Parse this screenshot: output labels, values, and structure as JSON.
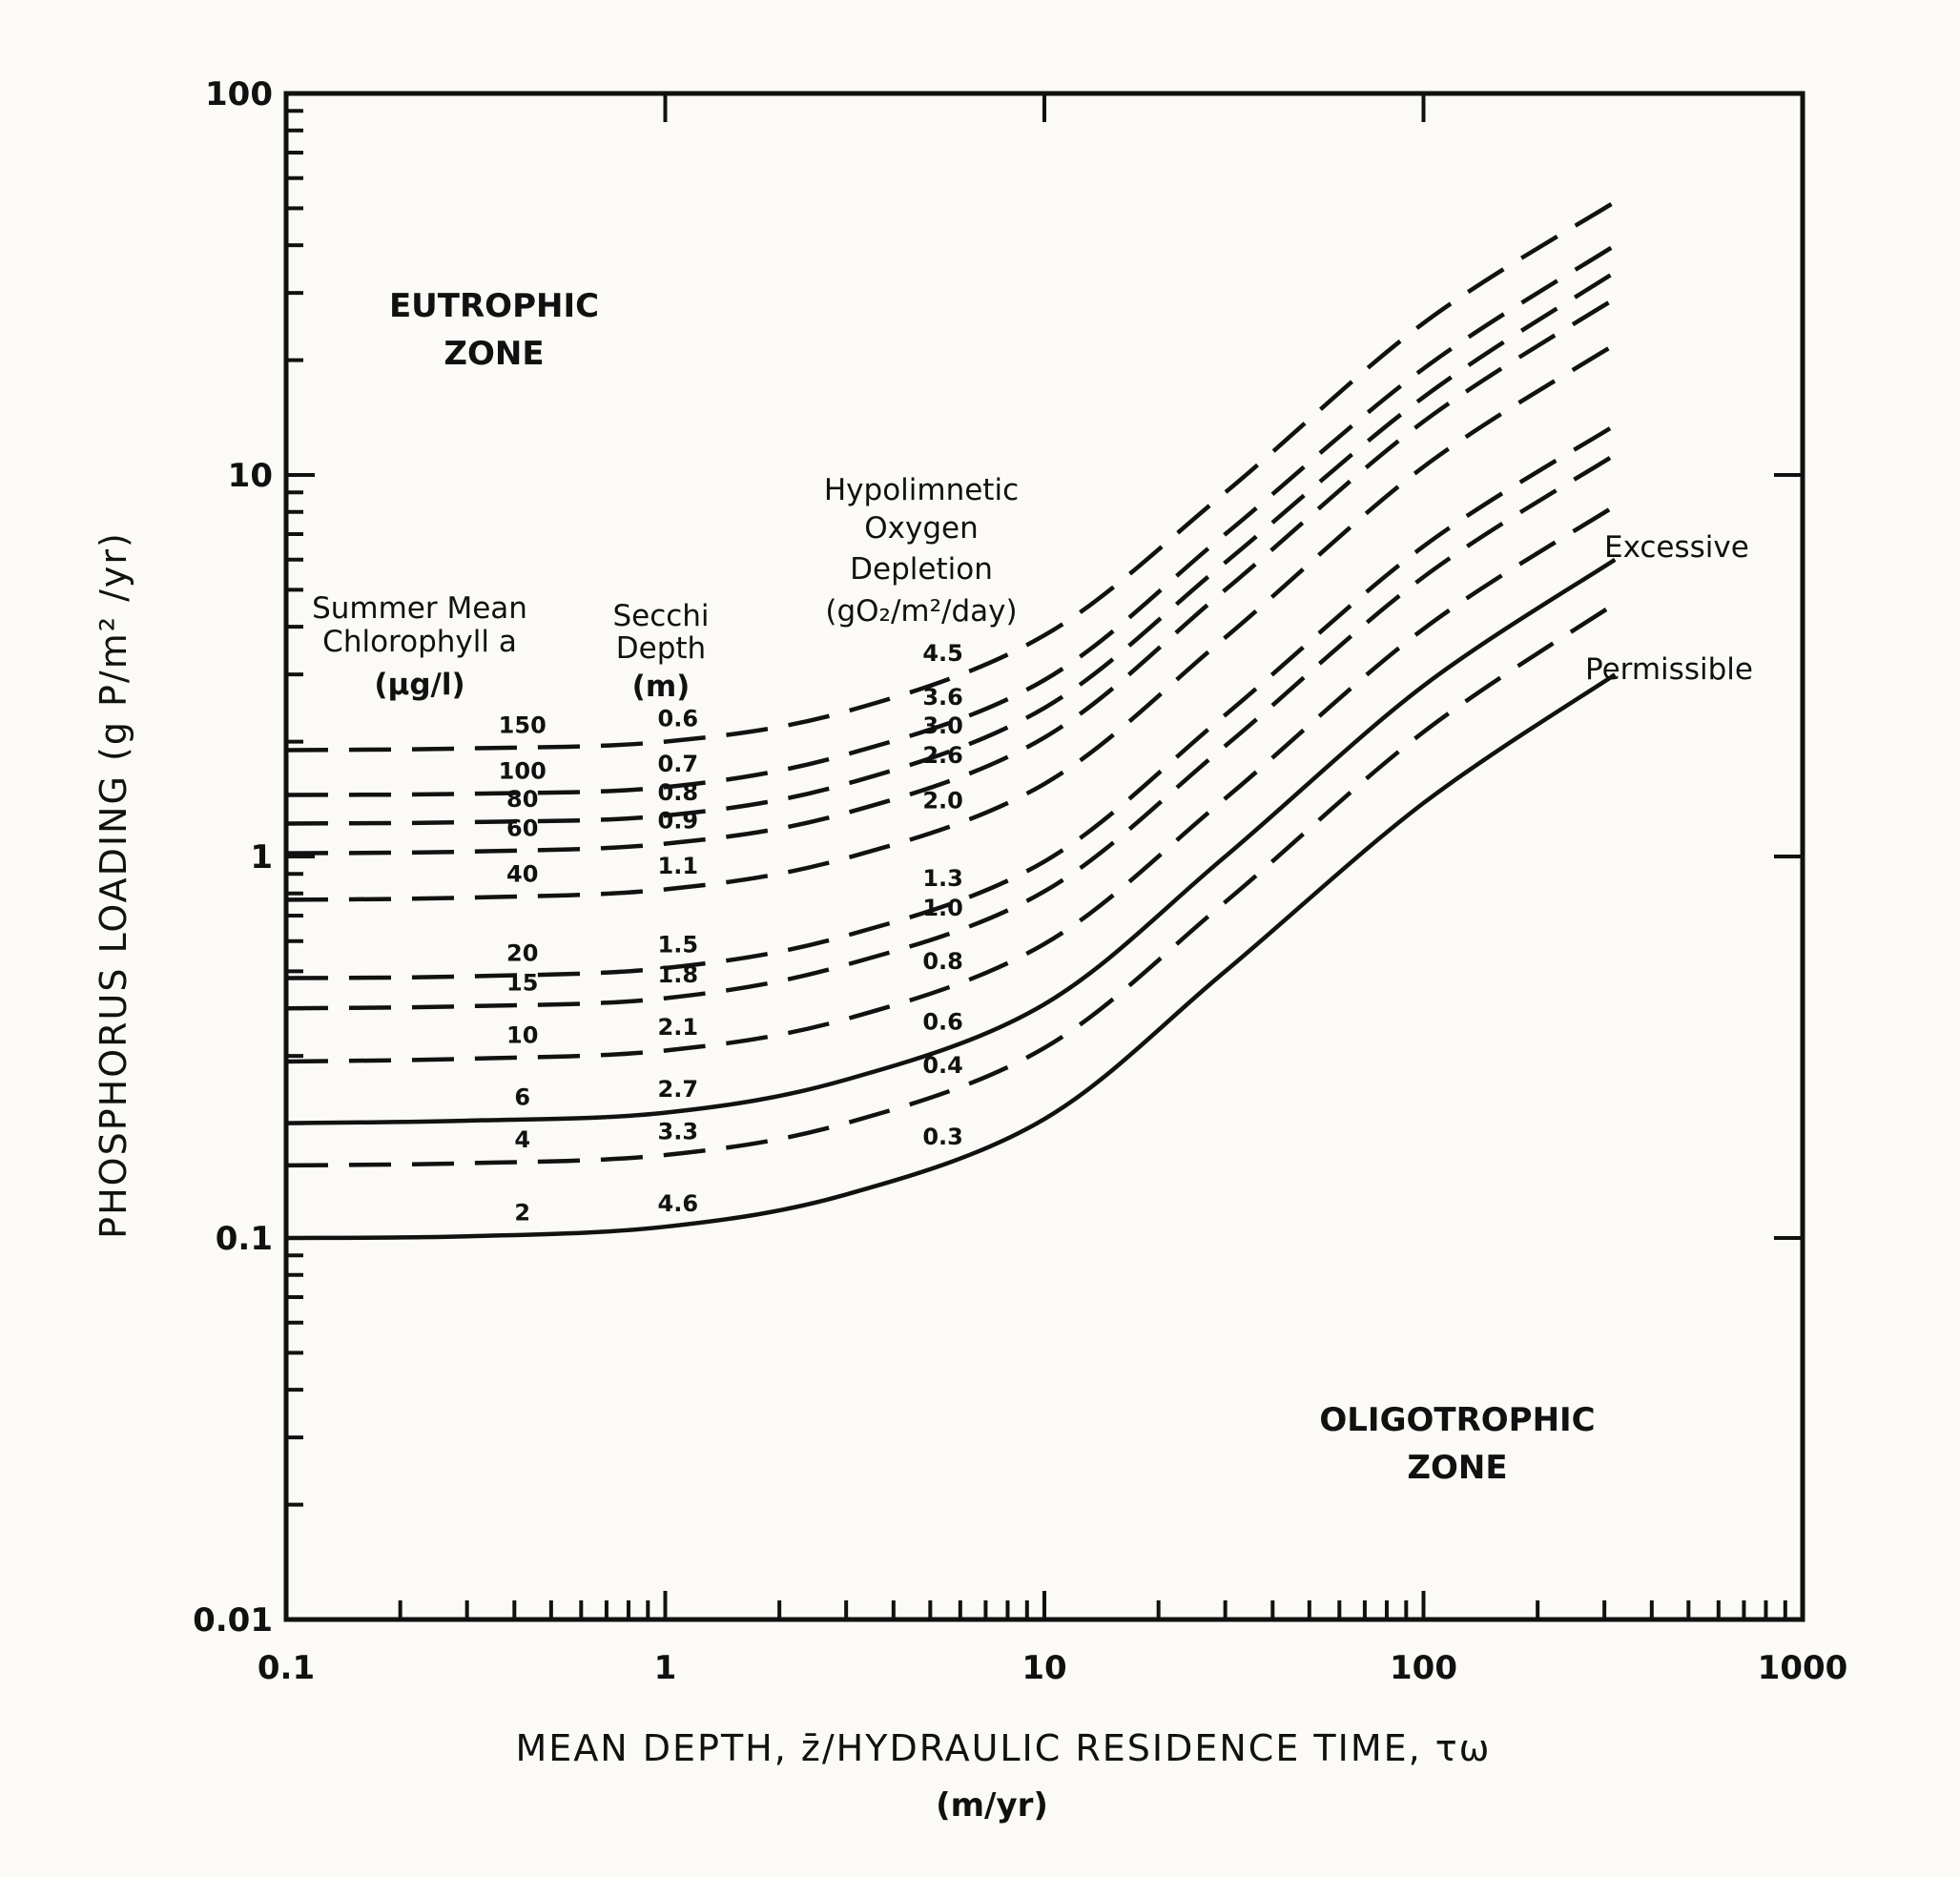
{
  "chart_data": {
    "type": "line",
    "xlabel_line1": "MEAN DEPTH, z̄/HYDRAULIC RESIDENCE TIME, τω",
    "xlabel_line2": "(m/yr)",
    "ylabel": "PHOSPHORUS LOADING (g P/m² /yr)",
    "x_scale": "log",
    "y_scale": "log",
    "xlim": [
      0.1,
      1000
    ],
    "ylim": [
      0.01,
      100
    ],
    "x_tick_labels": [
      "0.1",
      "1",
      "10",
      "100",
      "1000"
    ],
    "y_tick_labels": [
      "0.01",
      "0.1",
      "1",
      "10",
      "100"
    ],
    "grid": false,
    "zone_labels": {
      "eutrophic": [
        "EUTROPHIC",
        "ZONE"
      ],
      "oligotrophic": [
        "OLIGOTROPHIC",
        "ZONE"
      ]
    },
    "column_headers": {
      "chlorophyll": [
        "Summer Mean",
        "Chlorophyll a",
        "(μg/l)"
      ],
      "secchi": [
        "Secchi",
        "Depth",
        "(m)"
      ],
      "oxygen": [
        "Hypolimnetic",
        "Oxygen",
        "Depletion",
        "(gO₂/m²/day)"
      ]
    },
    "curve_names": {
      "excessive": "Excessive",
      "permissible": "Permissible"
    },
    "curve_x": [
      0.1,
      0.3,
      1,
      3,
      10,
      30,
      100,
      320
    ],
    "series": [
      {
        "style": "dashed",
        "chlorophyll": "150",
        "secchi": "0.6",
        "oxygen": "4.5",
        "y": [
          1.9,
          1.92,
          2.0,
          2.4,
          3.8,
          9.0,
          25.0,
          52.0
        ]
      },
      {
        "style": "dashed",
        "chlorophyll": "100",
        "secchi": "0.7",
        "oxygen": "3.6",
        "y": [
          1.45,
          1.46,
          1.52,
          1.85,
          2.9,
          7.0,
          19.0,
          40.0
        ]
      },
      {
        "style": "dashed",
        "chlorophyll": "80",
        "secchi": "0.8",
        "oxygen": "3.0",
        "y": [
          1.22,
          1.23,
          1.28,
          1.55,
          2.45,
          5.9,
          16.0,
          34.0
        ]
      },
      {
        "style": "dashed",
        "chlorophyll": "60",
        "secchi": "0.9",
        "oxygen": "2.6",
        "y": [
          1.02,
          1.03,
          1.08,
          1.3,
          2.05,
          5.0,
          13.8,
          29.0
        ]
      },
      {
        "style": "dashed",
        "chlorophyll": "40",
        "secchi": "1.1",
        "oxygen": "2.0",
        "y": [
          0.77,
          0.78,
          0.82,
          0.99,
          1.55,
          3.75,
          10.5,
          22.0
        ]
      },
      {
        "style": "dashed",
        "chlorophyll": "20",
        "secchi": "1.5",
        "oxygen": "1.3",
        "y": [
          0.48,
          0.485,
          0.51,
          0.62,
          0.97,
          2.35,
          6.5,
          13.5
        ]
      },
      {
        "style": "dashed",
        "chlorophyll": "15",
        "secchi": "1.8",
        "oxygen": "1.0",
        "y": [
          0.4,
          0.405,
          0.425,
          0.52,
          0.81,
          1.95,
          5.4,
          11.3
        ]
      },
      {
        "style": "dashed",
        "chlorophyll": "10",
        "secchi": "2.1",
        "oxygen": "0.8",
        "y": [
          0.29,
          0.295,
          0.31,
          0.375,
          0.59,
          1.42,
          3.95,
          8.3
        ]
      },
      {
        "style": "solid",
        "name_ref": "excessive",
        "chlorophyll": "6",
        "secchi": "2.7",
        "oxygen": "0.6",
        "y": [
          0.2,
          0.203,
          0.213,
          0.26,
          0.41,
          1.0,
          2.8,
          6.0
        ]
      },
      {
        "style": "dashed",
        "chlorophyll": "4",
        "secchi": "3.3",
        "oxygen": "0.4",
        "y": [
          0.155,
          0.157,
          0.165,
          0.2,
          0.315,
          0.76,
          2.12,
          4.6
        ]
      },
      {
        "style": "solid",
        "name_ref": "permissible",
        "chlorophyll": "2",
        "secchi": "4.6",
        "oxygen": "0.3",
        "y": [
          0.1,
          0.101,
          0.107,
          0.13,
          0.205,
          0.5,
          1.38,
          3.0
        ]
      }
    ]
  }
}
